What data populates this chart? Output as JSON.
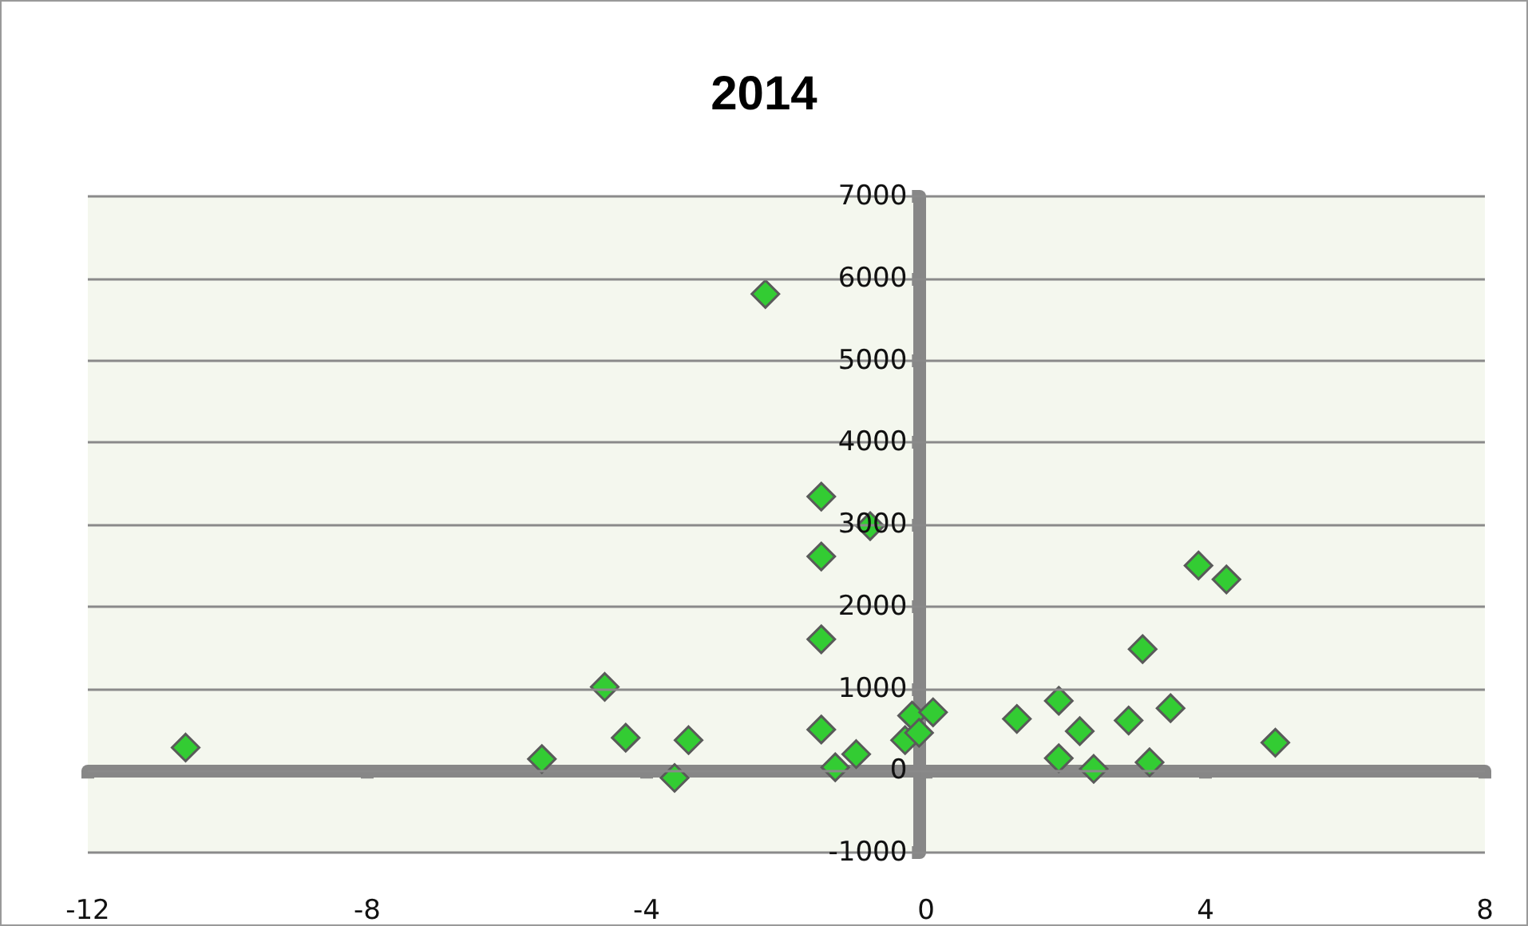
{
  "chart_data": {
    "type": "scatter",
    "title": "2014",
    "marker": "diamond",
    "grid": "y",
    "xlim": [
      -12,
      8
    ],
    "xticks": [
      -12,
      -8,
      -4,
      0,
      4,
      8
    ],
    "ylim": [
      -1000,
      7000
    ],
    "yticks": [
      -1000,
      0,
      1000,
      2000,
      3000,
      4000,
      5000,
      6000,
      7000
    ],
    "series": [
      {
        "color": "#33cc33",
        "x": [
          -10.6,
          -5.5,
          -4.6,
          -4.3,
          -3.4,
          -3.6,
          -2.3,
          -1.5,
          -1.5,
          -1.5,
          -1.5,
          -0.8,
          -1.3,
          -1.0,
          -0.3,
          -0.2,
          -0.1,
          0.1,
          1.3,
          1.9,
          1.9,
          2.2,
          2.4,
          2.9,
          3.1,
          3.2,
          3.5,
          3.9,
          4.3,
          5.0
        ],
        "values": [
          280,
          140,
          1020,
          400,
          370,
          -90,
          5810,
          3340,
          2610,
          1600,
          500,
          2980,
          40,
          200,
          370,
          670,
          460,
          710,
          630,
          850,
          150,
          480,
          20,
          610,
          1480,
          100,
          760,
          2500,
          2330,
          340
        ]
      }
    ]
  }
}
